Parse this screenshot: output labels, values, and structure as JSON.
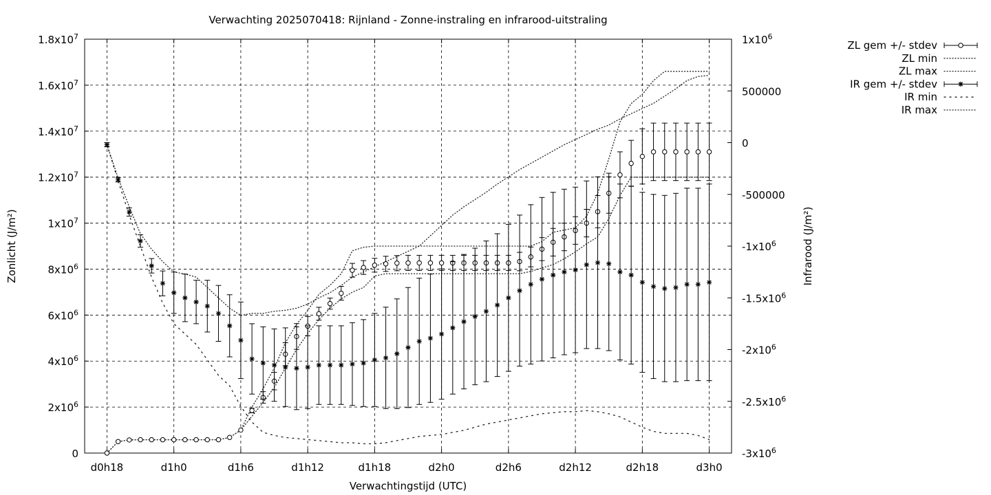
{
  "chart_data": {
    "type": "line",
    "title": "Verwachting 2025070418: Rijnland - Zonne-instraling en infrarood-uitstraling",
    "xlabel": "Verwachtingstijd (UTC)",
    "ylabel_left": "Zonlicht (J/m²)",
    "ylabel_right": "Infrarood (J/m²)",
    "x_unit": "hours since d0h18",
    "xlim": [
      -2,
      56
    ],
    "x_ticks": [
      {
        "x": 0,
        "label": "d0h18"
      },
      {
        "x": 6,
        "label": "d1h0"
      },
      {
        "x": 12,
        "label": "d1h6"
      },
      {
        "x": 18,
        "label": "d1h12"
      },
      {
        "x": 24,
        "label": "d1h18"
      },
      {
        "x": 30,
        "label": "d2h0"
      },
      {
        "x": 36,
        "label": "d2h6"
      },
      {
        "x": 42,
        "label": "d2h12"
      },
      {
        "x": 48,
        "label": "d2h18"
      },
      {
        "x": 54,
        "label": "d3h0"
      }
    ],
    "ylim_left": [
      0,
      18000000
    ],
    "y_ticks_left": [
      {
        "v": 0,
        "mant": "0",
        "exp": ""
      },
      {
        "v": 2000000,
        "mant": "2x10",
        "exp": "6"
      },
      {
        "v": 4000000,
        "mant": "4x10",
        "exp": "6"
      },
      {
        "v": 6000000,
        "mant": "6x10",
        "exp": "6"
      },
      {
        "v": 8000000,
        "mant": "8x10",
        "exp": "6"
      },
      {
        "v": 10000000,
        "mant": "1x10",
        "exp": "7"
      },
      {
        "v": 12000000,
        "mant": "1.2x10",
        "exp": "7"
      },
      {
        "v": 14000000,
        "mant": "1.4x10",
        "exp": "7"
      },
      {
        "v": 16000000,
        "mant": "1.6x10",
        "exp": "7"
      },
      {
        "v": 18000000,
        "mant": "1.8x10",
        "exp": "7"
      }
    ],
    "ylim_right": [
      -3000000,
      1000000
    ],
    "y_ticks_right": [
      {
        "v": -3000000,
        "mant": "-3x10",
        "exp": "6"
      },
      {
        "v": -2500000,
        "mant": "-2.5x10",
        "exp": "6"
      },
      {
        "v": -2000000,
        "mant": "-2x10",
        "exp": "6"
      },
      {
        "v": -1500000,
        "mant": "-1.5x10",
        "exp": "6"
      },
      {
        "v": -1000000,
        "mant": "-1x10",
        "exp": "6"
      },
      {
        "v": -500000,
        "mant": "-500000",
        "exp": ""
      },
      {
        "v": 0,
        "mant": "0",
        "exp": ""
      },
      {
        "v": 500000,
        "mant": "500000",
        "exp": ""
      },
      {
        "v": 1000000,
        "mant": "1x10",
        "exp": "6"
      }
    ],
    "grid": true,
    "legend_position": "outside-top-right",
    "legend": [
      {
        "label": "ZL gem +/- stdev",
        "style": "errorbar-circle"
      },
      {
        "label": "ZL min",
        "style": "dotted-fine"
      },
      {
        "label": "ZL max",
        "style": "dotted-fine"
      },
      {
        "label": "IR gem +/- stdev",
        "style": "errorbar-star"
      },
      {
        "label": "IR min",
        "style": "dotted-coarse"
      },
      {
        "label": "IR max",
        "style": "dotted-fine"
      }
    ],
    "series": [
      {
        "name": "ZL gem +/- stdev",
        "axis": "left",
        "marker": "circle",
        "x": [
          0,
          1,
          2,
          3,
          4,
          5,
          6,
          7,
          8,
          9,
          10,
          11,
          12,
          13,
          14,
          15,
          16,
          17,
          18,
          19,
          20,
          21,
          22,
          23,
          24,
          25,
          26,
          27,
          28,
          29,
          30,
          31,
          32,
          33,
          34,
          35,
          36,
          37,
          38,
          39,
          40,
          41,
          42,
          43,
          44,
          45,
          46,
          47,
          48,
          49,
          50,
          51,
          52,
          53,
          54
        ],
        "y": [
          0,
          500000,
          570000,
          580000,
          580000,
          580000,
          580000,
          580000,
          580000,
          580000,
          580000,
          680000,
          1000000,
          1850000,
          2420000,
          3130000,
          4300000,
          5070000,
          5520000,
          6060000,
          6500000,
          6950000,
          7950000,
          8070000,
          8170000,
          8230000,
          8260000,
          8270000,
          8270000,
          8270000,
          8270000,
          8270000,
          8270000,
          8270000,
          8270000,
          8270000,
          8270000,
          8330000,
          8530000,
          8870000,
          9170000,
          9400000,
          9680000,
          10000000,
          10500000,
          11300000,
          12100000,
          12600000,
          12900000,
          13100000,
          13100000,
          13100000,
          13100000,
          13100000,
          13100000
        ],
        "err": [
          0,
          0,
          0,
          0,
          0,
          0,
          0,
          0,
          0,
          0,
          0,
          0,
          0,
          100000,
          250000,
          380000,
          500000,
          560000,
          420000,
          280000,
          240000,
          300000,
          300000,
          300000,
          300000,
          330000,
          330000,
          330000,
          330000,
          330000,
          330000,
          330000,
          330000,
          330000,
          330000,
          330000,
          330000,
          400000,
          430000,
          500000,
          600000,
          600000,
          600000,
          600000,
          700000,
          870000,
          1000000,
          1000000,
          1200000,
          1250000,
          1250000,
          1250000,
          1250000,
          1250000,
          1250000
        ]
      },
      {
        "name": "ZL min",
        "axis": "left",
        "x": [
          0,
          1,
          2,
          3,
          4,
          5,
          6,
          7,
          8,
          9,
          10,
          11,
          12,
          13,
          14,
          15,
          16,
          17,
          18,
          19,
          20,
          21,
          22,
          23,
          24,
          25,
          26,
          27,
          28,
          29,
          30,
          31,
          32,
          33,
          34,
          35,
          36,
          37,
          38,
          39,
          40,
          41,
          42,
          43,
          44,
          45,
          46,
          47,
          48,
          49,
          50,
          51,
          52,
          53,
          54
        ],
        "y": [
          0,
          500000,
          570000,
          580000,
          580000,
          580000,
          580000,
          580000,
          580000,
          580000,
          580000,
          680000,
          1000000,
          1600000,
          2200000,
          2850000,
          3700000,
          4500000,
          5200000,
          5800000,
          6300000,
          6700000,
          7000000,
          7200000,
          7700000,
          7800000,
          7800000,
          7800000,
          7800000,
          7800000,
          7800000,
          7800000,
          7800000,
          7800000,
          7800000,
          7800000,
          7800000,
          7800000,
          7900000,
          8050000,
          8200000,
          8450000,
          8750000,
          9100000,
          9400000,
          10200000,
          11200000,
          12000000,
          12000000,
          12000000,
          12000000,
          12000000,
          12000000,
          12000000,
          12000000
        ]
      },
      {
        "name": "ZL max",
        "axis": "left",
        "x": [
          0,
          1,
          2,
          3,
          4,
          5,
          6,
          7,
          8,
          9,
          10,
          11,
          12,
          13,
          14,
          15,
          16,
          17,
          18,
          19,
          20,
          21,
          22,
          23,
          24,
          25,
          26,
          27,
          28,
          29,
          30,
          31,
          32,
          33,
          34,
          35,
          36,
          37,
          38,
          39,
          40,
          41,
          42,
          43,
          44,
          45,
          46,
          47,
          48,
          49,
          50,
          51,
          52,
          53,
          54
        ],
        "y": [
          0,
          500000,
          570000,
          580000,
          580000,
          580000,
          580000,
          580000,
          580000,
          580000,
          580000,
          680000,
          1000000,
          2000000,
          2800000,
          3700000,
          4800000,
          5600000,
          6200000,
          6900000,
          7300000,
          7800000,
          8800000,
          8950000,
          9000000,
          9000000,
          9000000,
          9000000,
          9000000,
          9000000,
          9000000,
          9000000,
          9000000,
          9000000,
          9000000,
          9000000,
          9000000,
          9000000,
          9000000,
          9200000,
          9600000,
          9700000,
          9800000,
          10300000,
          11300000,
          12800000,
          14400000,
          15200000,
          15600000,
          16200000,
          16600000,
          16600000,
          16600000,
          16600000,
          16600000
        ]
      },
      {
        "name": "IR gem +/- stdev",
        "axis": "right",
        "marker": "star",
        "x": [
          0,
          1,
          2,
          3,
          4,
          5,
          6,
          7,
          8,
          9,
          10,
          11,
          12,
          13,
          14,
          15,
          16,
          17,
          18,
          19,
          20,
          21,
          22,
          23,
          24,
          25,
          26,
          27,
          28,
          29,
          30,
          31,
          32,
          33,
          34,
          35,
          36,
          37,
          38,
          39,
          40,
          41,
          42,
          43,
          44,
          45,
          46,
          47,
          48,
          49,
          50,
          51,
          52,
          53,
          54
        ],
        "y": [
          -20000,
          -360000,
          -670000,
          -950000,
          -1190000,
          -1360000,
          -1450000,
          -1500000,
          -1540000,
          -1580000,
          -1650000,
          -1770000,
          -1910000,
          -2090000,
          -2130000,
          -2150000,
          -2170000,
          -2180000,
          -2170000,
          -2150000,
          -2150000,
          -2150000,
          -2140000,
          -2130000,
          -2100000,
          -2080000,
          -2040000,
          -1980000,
          -1920000,
          -1890000,
          -1850000,
          -1790000,
          -1730000,
          -1680000,
          -1630000,
          -1570000,
          -1500000,
          -1430000,
          -1370000,
          -1320000,
          -1280000,
          -1250000,
          -1230000,
          -1180000,
          -1160000,
          -1170000,
          -1250000,
          -1280000,
          -1350000,
          -1390000,
          -1410000,
          -1400000,
          -1370000,
          -1370000,
          -1350000
        ],
        "err": [
          20000,
          20000,
          40000,
          60000,
          70000,
          120000,
          200000,
          230000,
          210000,
          250000,
          270000,
          300000,
          370000,
          340000,
          350000,
          350000,
          380000,
          400000,
          400000,
          380000,
          380000,
          380000,
          400000,
          420000,
          450000,
          490000,
          530000,
          580000,
          610000,
          620000,
          630000,
          640000,
          650000,
          660000,
          680000,
          690000,
          710000,
          730000,
          770000,
          790000,
          800000,
          800000,
          800000,
          810000,
          830000,
          840000,
          850000,
          860000,
          870000,
          890000,
          900000,
          910000,
          930000,
          930000,
          950000
        ]
      },
      {
        "name": "IR min",
        "axis": "right",
        "x": [
          0,
          1,
          2,
          3,
          4,
          5,
          6,
          7,
          8,
          9,
          10,
          11,
          12,
          13,
          14,
          15,
          16,
          17,
          18,
          19,
          20,
          21,
          22,
          23,
          24,
          25,
          26,
          27,
          28,
          29,
          30,
          31,
          32,
          33,
          34,
          35,
          36,
          37,
          38,
          39,
          40,
          41,
          42,
          43,
          44,
          45,
          46,
          47,
          48,
          49,
          50,
          51,
          52,
          53,
          54
        ],
        "y": [
          -20000,
          -370000,
          -700000,
          -1000000,
          -1300000,
          -1550000,
          -1750000,
          -1850000,
          -1950000,
          -2100000,
          -2250000,
          -2350000,
          -2550000,
          -2700000,
          -2800000,
          -2830000,
          -2850000,
          -2860000,
          -2870000,
          -2880000,
          -2890000,
          -2900000,
          -2900000,
          -2910000,
          -2910000,
          -2900000,
          -2880000,
          -2860000,
          -2840000,
          -2830000,
          -2820000,
          -2800000,
          -2780000,
          -2750000,
          -2720000,
          -2700000,
          -2680000,
          -2660000,
          -2640000,
          -2620000,
          -2610000,
          -2600000,
          -2600000,
          -2590000,
          -2600000,
          -2620000,
          -2650000,
          -2700000,
          -2750000,
          -2790000,
          -2810000,
          -2810000,
          -2810000,
          -2830000,
          -2870000
        ]
      },
      {
        "name": "IR max",
        "axis": "right",
        "x": [
          0,
          1,
          2,
          3,
          4,
          5,
          6,
          7,
          8,
          9,
          10,
          11,
          12,
          13,
          14,
          15,
          16,
          17,
          18,
          19,
          20,
          21,
          22,
          23,
          24,
          25,
          26,
          27,
          28,
          29,
          30,
          31,
          32,
          33,
          34,
          35,
          36,
          37,
          38,
          39,
          40,
          41,
          42,
          43,
          44,
          45,
          46,
          47,
          48,
          49,
          50,
          51,
          52,
          53,
          54
        ],
        "y": [
          -20000,
          -340000,
          -620000,
          -880000,
          -1030000,
          -1150000,
          -1250000,
          -1270000,
          -1300000,
          -1400000,
          -1500000,
          -1600000,
          -1670000,
          -1650000,
          -1650000,
          -1630000,
          -1620000,
          -1600000,
          -1560000,
          -1500000,
          -1450000,
          -1380000,
          -1300000,
          -1250000,
          -1200000,
          -1150000,
          -1100000,
          -1050000,
          -1000000,
          -900000,
          -800000,
          -700000,
          -620000,
          -550000,
          -480000,
          -400000,
          -330000,
          -260000,
          -200000,
          -140000,
          -80000,
          -20000,
          30000,
          80000,
          130000,
          170000,
          230000,
          280000,
          330000,
          380000,
          450000,
          520000,
          600000,
          640000,
          650000
        ]
      }
    ]
  }
}
